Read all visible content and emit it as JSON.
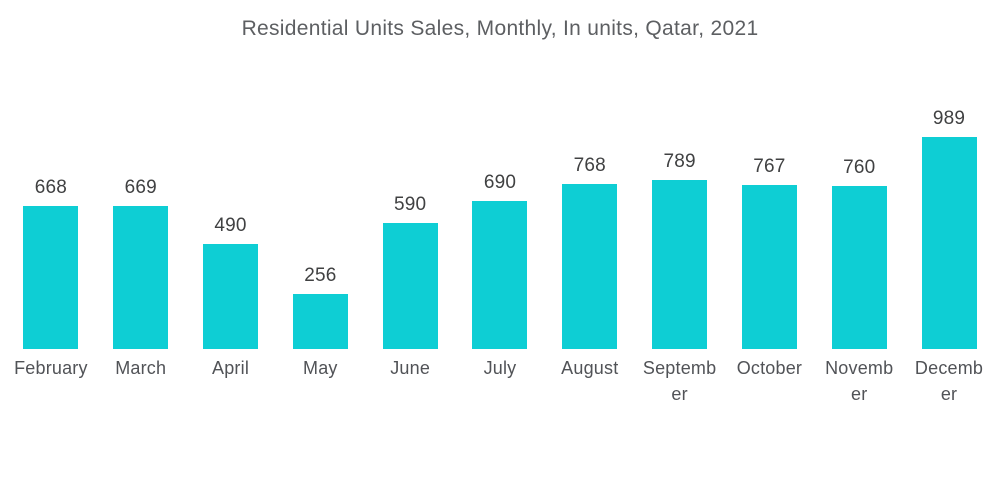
{
  "chart_data": {
    "type": "bar",
    "title": "Residential Units Sales, Monthly, In units, Qatar, 2021",
    "categories": [
      "February",
      "March",
      "April",
      "May",
      "June",
      "July",
      "August",
      "September",
      "October",
      "November",
      "December"
    ],
    "values": [
      668,
      669,
      490,
      256,
      590,
      690,
      768,
      789,
      767,
      760,
      989
    ],
    "categories_display": [
      [
        "February"
      ],
      [
        "March"
      ],
      [
        "April"
      ],
      [
        "May"
      ],
      [
        "June"
      ],
      [
        "July"
      ],
      [
        "August"
      ],
      [
        "Septemb",
        "er"
      ],
      [
        "October"
      ],
      [
        "Novemb",
        "er"
      ],
      [
        "Decemb",
        "er"
      ]
    ],
    "xlabel": "",
    "ylabel": "",
    "ylim": [
      0,
      989
    ],
    "grid": false,
    "legend": "none",
    "value_labels_shown": true,
    "bar_color": "#0eced4",
    "title_color": "#5d5f62",
    "value_label_color": "#404142",
    "axis_label_color": "#515357",
    "background_color": "#ffffff"
  }
}
